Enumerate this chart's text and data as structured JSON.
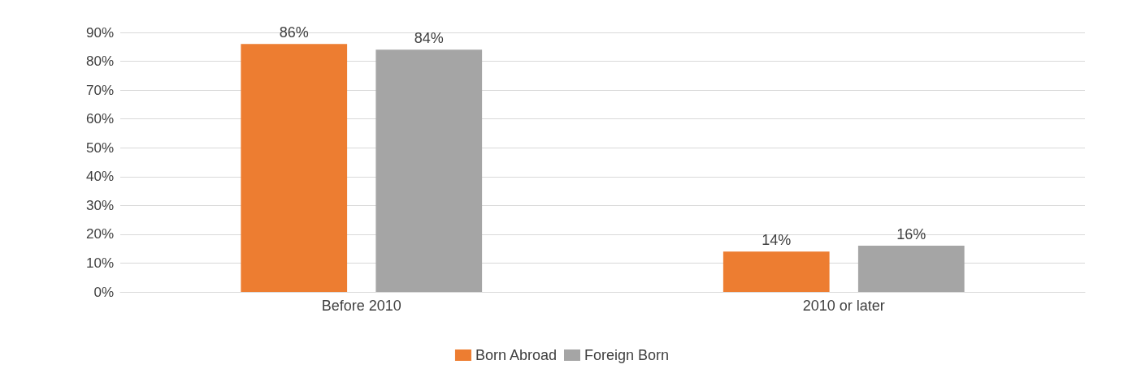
{
  "chart_data": {
    "type": "bar",
    "categories": [
      "Before 2010",
      "2010 or later"
    ],
    "series": [
      {
        "name": "Born Abroad",
        "color": "#ed7d31",
        "values": [
          86,
          14
        ],
        "value_labels": [
          "86%",
          "14%"
        ]
      },
      {
        "name": "Foreign Born",
        "color": "#a5a5a5",
        "values": [
          84,
          16
        ],
        "value_labels": [
          "84%",
          "16%"
        ]
      }
    ],
    "ylim": [
      0,
      90
    ],
    "yticks": [
      {
        "value": 0,
        "label": "0%"
      },
      {
        "value": 10,
        "label": "10%"
      },
      {
        "value": 20,
        "label": "20%"
      },
      {
        "value": 30,
        "label": "30%"
      },
      {
        "value": 40,
        "label": "40%"
      },
      {
        "value": 50,
        "label": "50%"
      },
      {
        "value": 60,
        "label": "60%"
      },
      {
        "value": 70,
        "label": "70%"
      },
      {
        "value": 80,
        "label": "80%"
      },
      {
        "value": 90,
        "label": "90%"
      }
    ],
    "grid": "y",
    "legend": "bottom"
  }
}
